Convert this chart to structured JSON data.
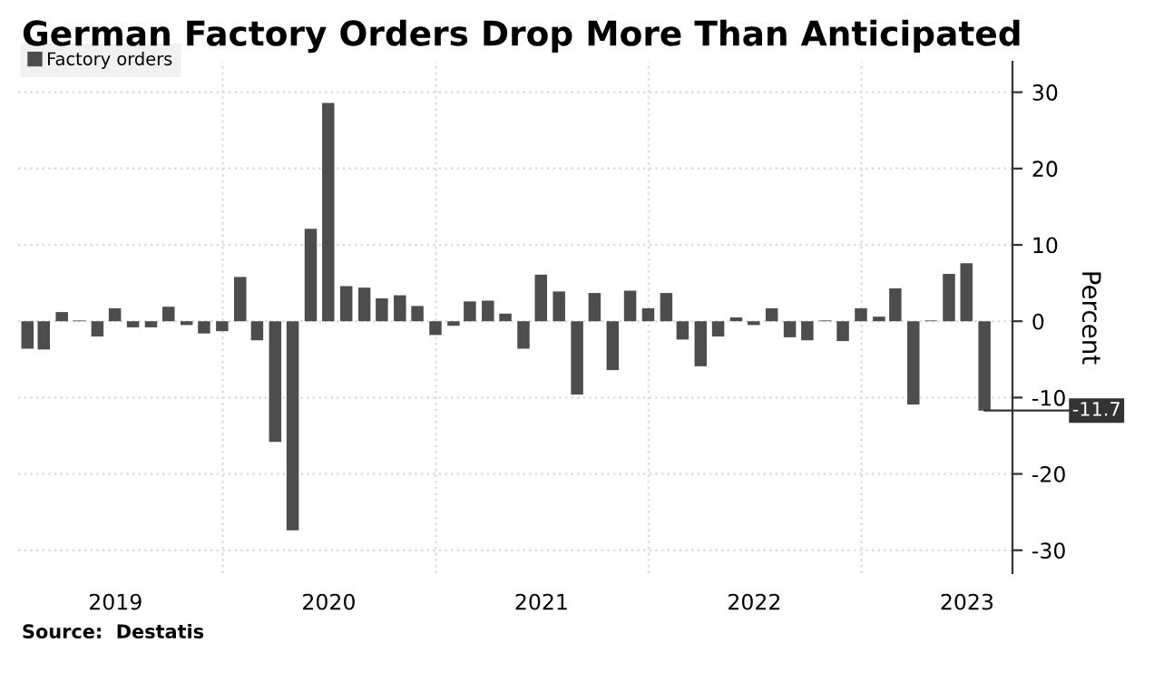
{
  "chart_data": {
    "type": "bar",
    "title": "German Factory Orders Drop More Than Anticipated",
    "ylabel": "Percent",
    "x": [
      "2019-01-31",
      "2019-02-28",
      "2019-03-31",
      "2019-04-30",
      "2019-05-31",
      "2019-06-30",
      "2019-07-31",
      "2019-08-31",
      "2019-09-30",
      "2019-10-31",
      "2019-11-30",
      "2019-12-31",
      "2020-01-31",
      "2020-02-29",
      "2020-03-31",
      "2020-04-30",
      "2020-05-31",
      "2020-06-30",
      "2020-07-31",
      "2020-08-31",
      "2020-09-30",
      "2020-10-31",
      "2020-11-30",
      "2020-12-31",
      "2021-01-31",
      "2021-02-28",
      "2021-03-31",
      "2021-04-30",
      "2021-05-31",
      "2021-06-30",
      "2021-07-31",
      "2021-08-31",
      "2021-09-30",
      "2021-10-31",
      "2021-11-30",
      "2021-12-31",
      "2022-01-31",
      "2022-02-28",
      "2022-03-31",
      "2022-04-30",
      "2022-05-31",
      "2022-06-30",
      "2022-07-31",
      "2022-08-31",
      "2022-09-30",
      "2022-10-31",
      "2022-11-30",
      "2022-12-31",
      "2023-01-31",
      "2023-02-28",
      "2023-03-31",
      "2023-04-30",
      "2023-05-31",
      "2023-06-30",
      "2023-07-31"
    ],
    "series": [
      {
        "name": "Factory orders",
        "color": "#4d4d4d",
        "values": [
          -3.6,
          -3.7,
          1.2,
          0.1,
          -2.0,
          1.7,
          -0.8,
          -0.8,
          1.9,
          -0.5,
          -1.6,
          -1.3,
          5.8,
          -2.5,
          -15.8,
          -27.4,
          12.1,
          28.6,
          4.6,
          4.4,
          3.0,
          3.4,
          2.0,
          -1.8,
          -0.6,
          2.6,
          2.7,
          1.0,
          -3.6,
          6.1,
          3.9,
          -9.6,
          3.7,
          -6.4,
          4.0,
          1.7,
          3.7,
          -2.4,
          -5.9,
          -2.0,
          0.5,
          -0.5,
          1.7,
          -2.1,
          -2.5,
          0.1,
          -2.6,
          1.7,
          0.6,
          4.3,
          -10.9,
          0.1,
          6.2,
          7.6,
          -11.7
        ]
      }
    ],
    "xlim": [
      "2019-01-15",
      "2023-09-17"
    ],
    "xticks": [
      {
        "value": "2019-07-01",
        "label": "2019"
      },
      {
        "value": "2020-07-01",
        "label": "2020"
      },
      {
        "value": "2021-07-01",
        "label": "2021"
      },
      {
        "value": "2022-07-01",
        "label": "2022"
      },
      {
        "value": "2023-07-01",
        "label": "2023"
      }
    ],
    "ylim": [
      -33,
      34
    ],
    "yticks": [
      -30,
      -20,
      -10,
      0,
      10,
      20,
      30
    ],
    "grid": "y",
    "ref_lines": [
      {
        "axis": "x",
        "value": "2020-01-01",
        "color": "#dddddd",
        "line_style": "dotted"
      },
      {
        "axis": "x",
        "value": "2021-01-01",
        "color": "#dddddd",
        "line_style": "dotted"
      },
      {
        "axis": "x",
        "value": "2022-01-01",
        "color": "#dddddd",
        "line_style": "dotted"
      },
      {
        "axis": "x",
        "value": "2023-01-01",
        "color": "#dddddd",
        "line_style": "dotted"
      }
    ],
    "legend": "top left",
    "annotations": [
      {
        "text": "-11.7",
        "x": "2023-07-31",
        "y": -11.7
      },
      "Source:  Destatis"
    ]
  }
}
